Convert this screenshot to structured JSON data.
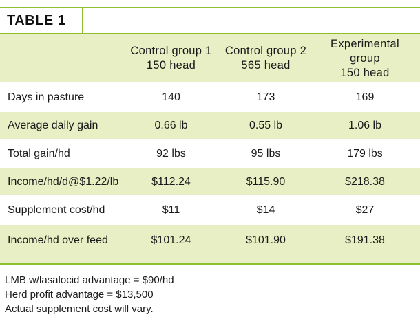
{
  "title": "TABLE 1",
  "columns": [
    "",
    "Control group 1\n150 head",
    "Control group 2\n565 head",
    "Experimental\ngroup\n150 head"
  ],
  "rows": [
    [
      "Days in pasture",
      "140",
      "173",
      "169"
    ],
    [
      "Average daily gain",
      "0.66 lb",
      "0.55 lb",
      "1.06 lb"
    ],
    [
      "Total gain/hd",
      "92 lbs",
      "95 lbs",
      "179 lbs"
    ],
    [
      "Income/hd/d@$1.22/lb",
      "$112.24",
      "$115.90",
      "$218.38"
    ],
    [
      "Supplement cost/hd",
      "$11",
      "$14",
      "$27"
    ],
    [
      "Income/hd over feed",
      "$101.24",
      "$101.90",
      "$191.38"
    ]
  ],
  "notes": [
    "LMB w/lasalocid advantage = $90/hd",
    "Herd profit advantage = $13,500",
    "Actual supplement cost will vary."
  ],
  "colors": {
    "accent": "#8fbf2e",
    "band": "#e8efc4"
  }
}
